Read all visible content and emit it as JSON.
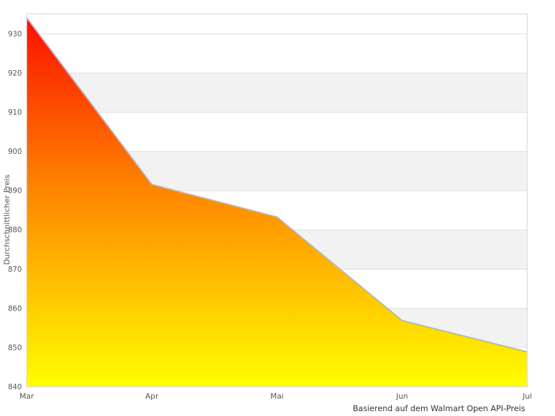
{
  "chart_data": {
    "type": "area",
    "title": "",
    "x_labels": [
      "Mar",
      "Apr",
      "Mai",
      "Jun",
      "Jul"
    ],
    "values": [
      934.1,
      891.6,
      883.3,
      856.9,
      848.9
    ],
    "series_name": "Durchschnittlicher Preis",
    "xlabel": "",
    "ylabel": "Durchschnittlicher Preis",
    "caption": "Basierend auf dem Walmart Open API-Preis",
    "yticks": [
      840,
      850,
      860,
      870,
      880,
      890,
      900,
      910,
      920,
      930
    ],
    "ytick_labels": [
      "840",
      "850",
      "860",
      "870",
      "880",
      "890",
      "900",
      "910",
      "920",
      "930"
    ],
    "ylim": [
      840,
      935.1
    ],
    "grid": "alternating-horizontal-bands",
    "legend": "none",
    "colors": {
      "gradient_top": "#fb0d00",
      "gradient_mid": "#ff8c00",
      "gradient_bottom": "#ffff00",
      "line": "#a3bbd8",
      "band_alt": "#f2f2f2",
      "gridline": "#dddddd",
      "border": "#d9d9d9",
      "tick_text": "#555555",
      "caption_text": "#333333",
      "background": "#ffffff"
    }
  }
}
